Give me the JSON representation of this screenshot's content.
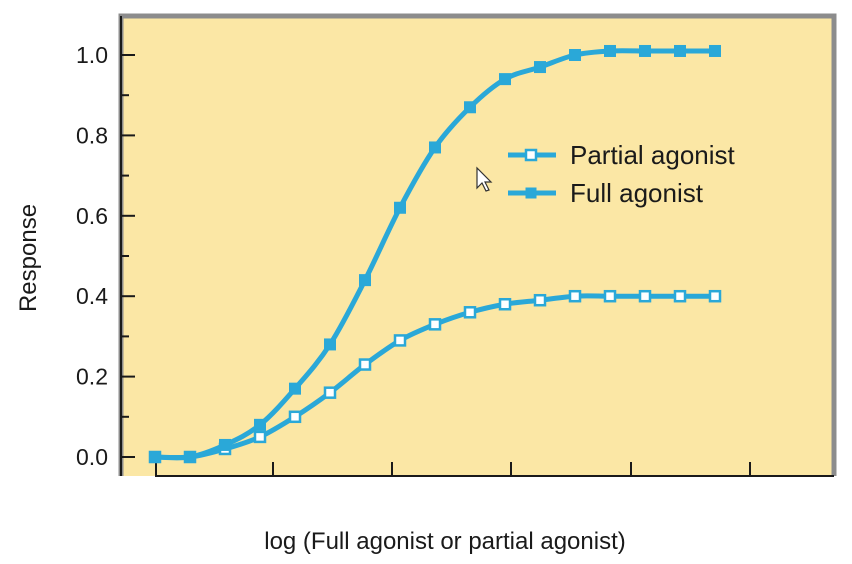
{
  "chart_data": {
    "type": "line",
    "xlabel": "log (Full agonist or partial agonist)",
    "ylabel": "Response",
    "ylim": [
      0.0,
      1.0
    ],
    "ytick_labels": [
      "0.0",
      "0.2",
      "0.4",
      "0.6",
      "0.8",
      "1.0"
    ],
    "xticks_labeled": false,
    "grid": false,
    "legend_position": "right-middle",
    "colors": {
      "plot_background": "#fbe7a5",
      "series": "#2aa8d8",
      "frame": "#8c8c8c",
      "axis": "#1a1a1a"
    },
    "series": [
      {
        "name": "Partial agonist",
        "marker": "hollow-square",
        "x": [
          0,
          1,
          2,
          3,
          4,
          5,
          6,
          7,
          8,
          9,
          10,
          11,
          12,
          13,
          14,
          15,
          16
        ],
        "y": [
          0.0,
          0.0,
          0.02,
          0.05,
          0.1,
          0.16,
          0.23,
          0.29,
          0.33,
          0.36,
          0.38,
          0.39,
          0.4,
          0.4,
          0.4,
          0.4,
          0.4
        ]
      },
      {
        "name": "Full agonist",
        "marker": "filled-square",
        "x": [
          0,
          1,
          2,
          3,
          4,
          5,
          6,
          7,
          8,
          9,
          10,
          11,
          12,
          13,
          14,
          15,
          16
        ],
        "y": [
          0.0,
          0.0,
          0.03,
          0.08,
          0.17,
          0.28,
          0.44,
          0.62,
          0.77,
          0.87,
          0.94,
          0.97,
          1.0,
          1.01,
          1.01,
          1.01,
          1.01
        ]
      }
    ]
  }
}
